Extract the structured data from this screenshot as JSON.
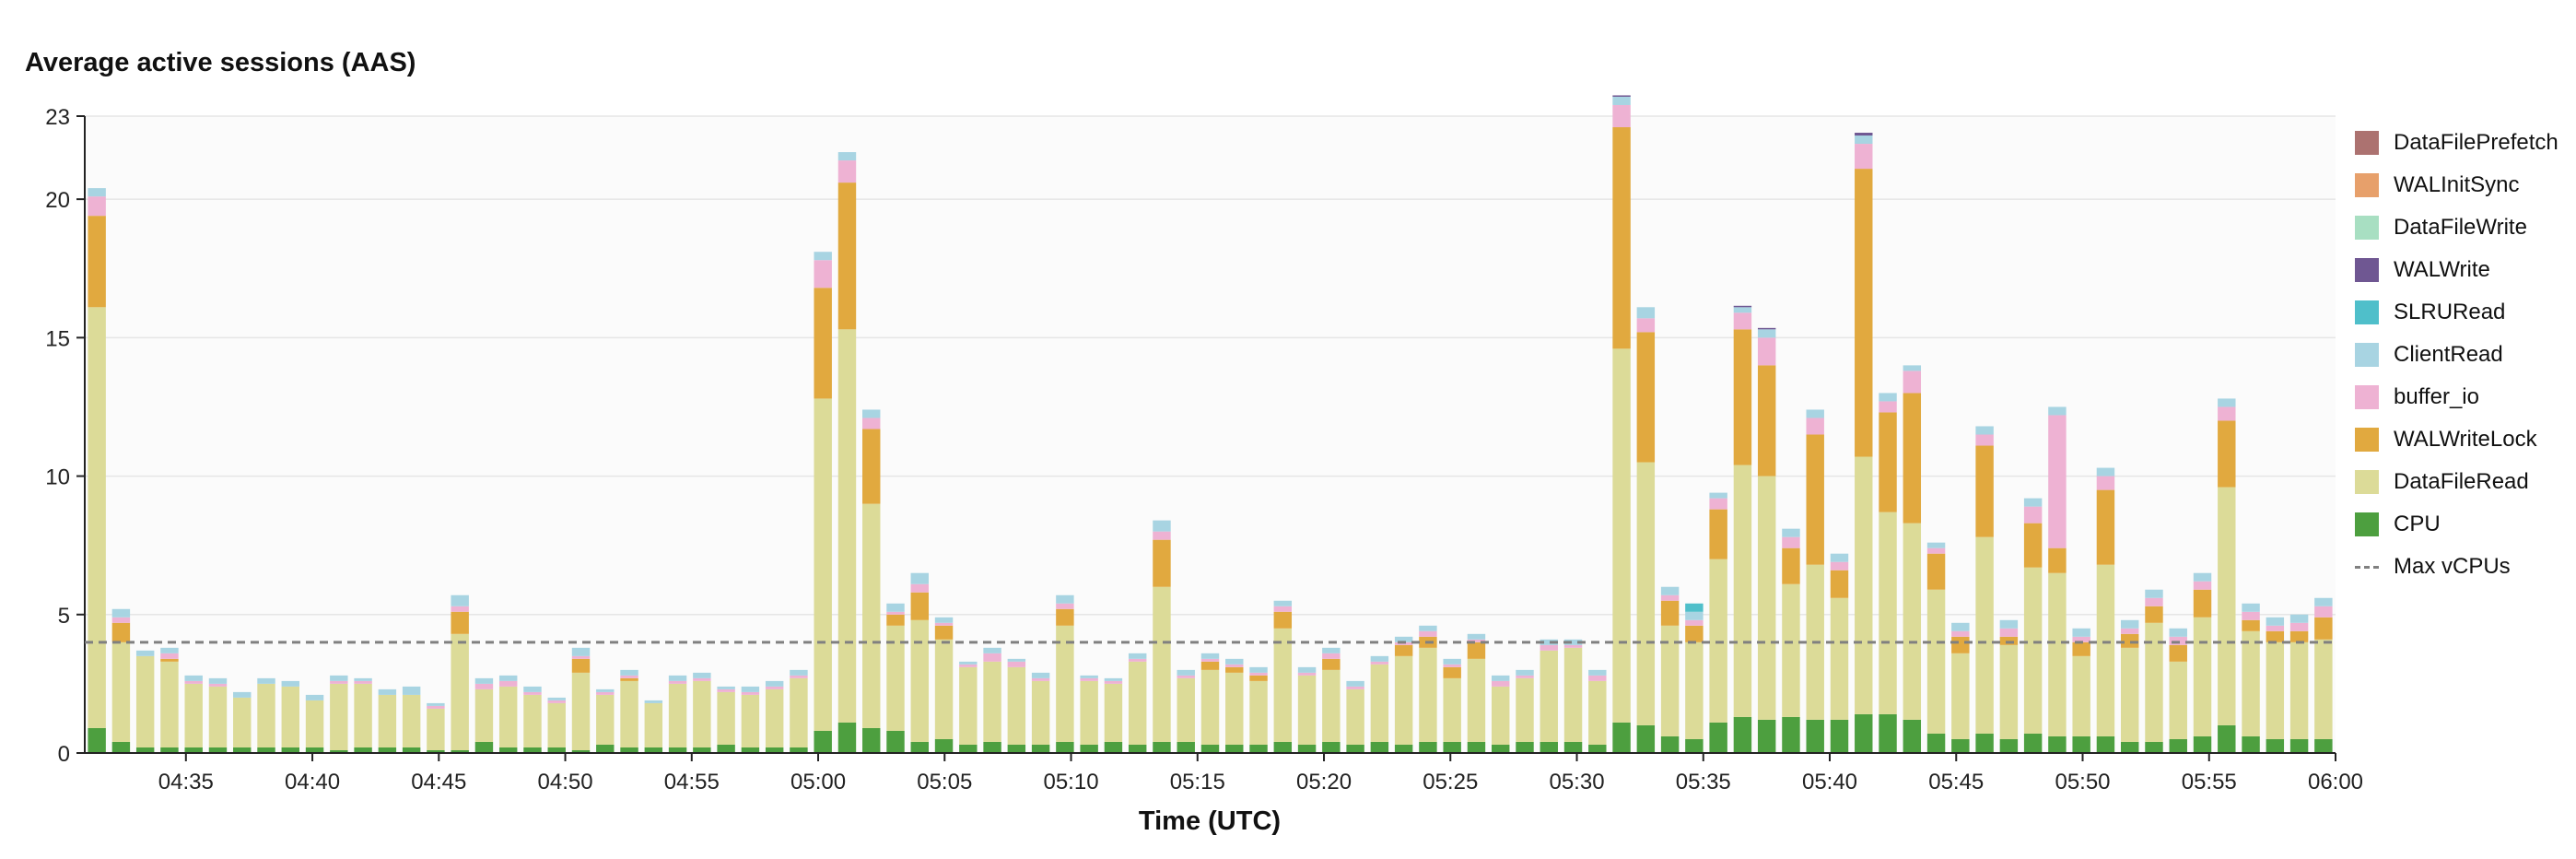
{
  "chart_data": {
    "type": "bar",
    "stacked": true,
    "title": "Average active sessions (AAS)",
    "xlabel": "Time (UTC)",
    "ylabel": "",
    "ylim": [
      0,
      23
    ],
    "yticks": [
      0,
      5,
      10,
      15,
      20,
      23
    ],
    "grid": true,
    "legend_position": "right",
    "x_tick_labels": [
      "04:35",
      "04:40",
      "04:45",
      "04:50",
      "04:55",
      "05:00",
      "05:05",
      "05:10",
      "05:15",
      "05:20",
      "05:25",
      "05:30",
      "05:35",
      "05:40",
      "05:45",
      "05:50",
      "05:55",
      "06:00"
    ],
    "x_start": "04:31",
    "x_end": "06:00",
    "reference_line": {
      "name": "Max vCPUs",
      "value": 4,
      "color": "#808080"
    },
    "series": [
      {
        "name": "CPU",
        "color": "#4d9f3f",
        "values": [
          0.9,
          0.4,
          0.2,
          0.2,
          0.2,
          0.2,
          0.2,
          0.2,
          0.2,
          0.2,
          0.1,
          0.2,
          0.2,
          0.2,
          0.1,
          0.1,
          0.4,
          0.2,
          0.2,
          0.2,
          0.1,
          0.3,
          0.2,
          0.2,
          0.2,
          0.2,
          0.3,
          0.2,
          0.2,
          0.2,
          0.8,
          1.1,
          0.9,
          0.8,
          0.4,
          0.5,
          0.3,
          0.4,
          0.3,
          0.3,
          0.4,
          0.3,
          0.4,
          0.3,
          0.4,
          0.4,
          0.3,
          0.3,
          0.3,
          0.4,
          0.3,
          0.4,
          0.3,
          0.4,
          0.3,
          0.4,
          0.4,
          0.4,
          0.3,
          0.4,
          0.4,
          0.4,
          0.3,
          1.1,
          1.0,
          0.6,
          0.5,
          1.1,
          1.3,
          1.2,
          1.3,
          1.2,
          1.2,
          1.4,
          1.4,
          1.2,
          0.7,
          0.5,
          0.7,
          0.5,
          0.7,
          0.6,
          0.6,
          0.6,
          0.4,
          0.4,
          0.5,
          0.6,
          1.0,
          0.6,
          0.5,
          0.5,
          0.5
        ]
      },
      {
        "name": "DataFileRead",
        "color": "#dcdb98",
        "values": [
          15.2,
          3.6,
          3.3,
          3.1,
          2.3,
          2.2,
          1.8,
          2.3,
          2.2,
          1.7,
          2.4,
          2.3,
          1.9,
          1.9,
          1.5,
          4.2,
          1.9,
          2.2,
          1.9,
          1.6,
          2.8,
          1.8,
          2.4,
          1.6,
          2.3,
          2.4,
          1.9,
          1.9,
          2.1,
          2.5,
          12.0,
          14.2,
          8.1,
          3.8,
          4.4,
          3.6,
          2.8,
          2.9,
          2.8,
          2.3,
          4.2,
          2.3,
          2.1,
          3.0,
          5.6,
          2.3,
          2.7,
          2.6,
          2.3,
          4.1,
          2.5,
          2.6,
          2.0,
          2.8,
          3.2,
          3.4,
          2.3,
          3.0,
          2.1,
          2.3,
          3.3,
          3.4,
          2.3,
          13.5,
          9.5,
          4.0,
          3.5,
          5.9,
          9.1,
          8.8,
          4.8,
          5.6,
          4.4,
          9.3,
          7.3,
          7.1,
          5.2,
          3.1,
          7.1,
          3.4,
          6.0,
          5.9,
          2.9,
          6.2,
          3.4,
          4.3,
          2.8,
          4.3,
          8.6,
          3.8,
          3.5,
          3.5,
          3.6
        ]
      },
      {
        "name": "WALWriteLock",
        "color": "#e1a93f",
        "values": [
          3.3,
          0.7,
          0.0,
          0.1,
          0.0,
          0.0,
          0.0,
          0.0,
          0.0,
          0.0,
          0.0,
          0.0,
          0.0,
          0.0,
          0.0,
          0.8,
          0.0,
          0.0,
          0.0,
          0.0,
          0.5,
          0.0,
          0.1,
          0.0,
          0.0,
          0.0,
          0.0,
          0.0,
          0.0,
          0.0,
          4.0,
          5.3,
          2.7,
          0.4,
          1.0,
          0.5,
          0.0,
          0.0,
          0.0,
          0.0,
          0.6,
          0.0,
          0.0,
          0.0,
          1.7,
          0.0,
          0.3,
          0.2,
          0.2,
          0.6,
          0.0,
          0.4,
          0.0,
          0.0,
          0.4,
          0.4,
          0.4,
          0.6,
          0.0,
          0.0,
          0.0,
          0.0,
          0.0,
          8.0,
          4.7,
          0.9,
          0.6,
          1.8,
          4.9,
          4.0,
          1.3,
          4.7,
          1.0,
          10.4,
          3.6,
          4.7,
          1.3,
          0.6,
          3.3,
          0.3,
          1.6,
          0.9,
          0.5,
          2.7,
          0.5,
          0.6,
          0.6,
          1.0,
          2.4,
          0.4,
          0.4,
          0.4,
          0.8
        ]
      },
      {
        "name": "buffer_io",
        "color": "#eeb2d3",
        "values": [
          0.7,
          0.2,
          0.0,
          0.2,
          0.1,
          0.1,
          0.0,
          0.0,
          0.0,
          0.0,
          0.1,
          0.1,
          0.0,
          0.0,
          0.1,
          0.2,
          0.2,
          0.2,
          0.1,
          0.1,
          0.1,
          0.1,
          0.1,
          0.0,
          0.1,
          0.1,
          0.1,
          0.1,
          0.1,
          0.1,
          1.0,
          0.8,
          0.4,
          0.1,
          0.3,
          0.1,
          0.1,
          0.3,
          0.2,
          0.1,
          0.2,
          0.1,
          0.1,
          0.1,
          0.3,
          0.1,
          0.1,
          0.1,
          0.1,
          0.2,
          0.1,
          0.2,
          0.1,
          0.1,
          0.1,
          0.2,
          0.1,
          0.1,
          0.2,
          0.1,
          0.2,
          0.1,
          0.2,
          0.8,
          0.5,
          0.2,
          0.2,
          0.4,
          0.6,
          1.0,
          0.4,
          0.6,
          0.3,
          0.9,
          0.4,
          0.8,
          0.2,
          0.2,
          0.4,
          0.3,
          0.6,
          4.8,
          0.2,
          0.5,
          0.2,
          0.3,
          0.3,
          0.3,
          0.5,
          0.3,
          0.2,
          0.3,
          0.4
        ]
      },
      {
        "name": "ClientRead",
        "color": "#a8d4e2",
        "values": [
          0.3,
          0.3,
          0.2,
          0.2,
          0.2,
          0.2,
          0.2,
          0.2,
          0.2,
          0.2,
          0.2,
          0.1,
          0.2,
          0.3,
          0.1,
          0.4,
          0.2,
          0.2,
          0.2,
          0.1,
          0.3,
          0.1,
          0.2,
          0.1,
          0.2,
          0.2,
          0.1,
          0.2,
          0.2,
          0.2,
          0.3,
          0.3,
          0.3,
          0.3,
          0.4,
          0.2,
          0.1,
          0.2,
          0.1,
          0.2,
          0.3,
          0.1,
          0.1,
          0.2,
          0.4,
          0.2,
          0.2,
          0.2,
          0.2,
          0.2,
          0.2,
          0.2,
          0.2,
          0.2,
          0.2,
          0.2,
          0.2,
          0.2,
          0.2,
          0.2,
          0.2,
          0.2,
          0.2,
          0.3,
          0.4,
          0.3,
          0.3,
          0.2,
          0.2,
          0.3,
          0.3,
          0.3,
          0.3,
          0.3,
          0.3,
          0.2,
          0.2,
          0.3,
          0.3,
          0.3,
          0.3,
          0.3,
          0.3,
          0.3,
          0.3,
          0.3,
          0.3,
          0.3,
          0.3,
          0.3,
          0.3,
          0.3,
          0.3
        ]
      },
      {
        "name": "SLRURead",
        "color": "#4fbfca",
        "values": [
          0,
          0,
          0,
          0,
          0,
          0,
          0,
          0,
          0,
          0,
          0,
          0,
          0,
          0,
          0,
          0,
          0,
          0,
          0,
          0,
          0,
          0,
          0,
          0,
          0,
          0,
          0,
          0,
          0,
          0,
          0,
          0,
          0,
          0,
          0,
          0,
          0,
          0,
          0,
          0,
          0,
          0,
          0,
          0,
          0,
          0,
          0,
          0,
          0,
          0,
          0,
          0,
          0,
          0,
          0,
          0,
          0,
          0,
          0,
          0,
          0,
          0,
          0,
          0,
          0,
          0,
          0.3,
          0,
          0,
          0,
          0,
          0,
          0,
          0,
          0,
          0,
          0,
          0,
          0,
          0,
          0,
          0,
          0,
          0,
          0,
          0,
          0,
          0,
          0,
          0,
          0,
          0,
          0
        ]
      },
      {
        "name": "WALWrite",
        "color": "#6f5792",
        "values": [
          0,
          0,
          0,
          0,
          0,
          0,
          0,
          0,
          0,
          0,
          0,
          0,
          0,
          0,
          0,
          0,
          0,
          0,
          0,
          0,
          0,
          0,
          0,
          0,
          0,
          0,
          0,
          0,
          0,
          0,
          0,
          0,
          0,
          0,
          0,
          0,
          0,
          0,
          0,
          0,
          0,
          0,
          0,
          0,
          0,
          0,
          0,
          0,
          0,
          0,
          0,
          0,
          0,
          0,
          0,
          0,
          0,
          0,
          0,
          0,
          0,
          0,
          0,
          0.05,
          0,
          0,
          0,
          0,
          0.05,
          0.05,
          0,
          0,
          0,
          0.1,
          0,
          0,
          0,
          0,
          0,
          0,
          0,
          0,
          0,
          0,
          0,
          0,
          0,
          0,
          0,
          0,
          0,
          0,
          0
        ]
      },
      {
        "name": "DataFileWrite",
        "color": "#a8dfc2",
        "values": [
          0,
          0,
          0,
          0,
          0,
          0,
          0,
          0,
          0,
          0,
          0,
          0,
          0,
          0,
          0,
          0,
          0,
          0,
          0,
          0,
          0,
          0,
          0,
          0,
          0,
          0,
          0,
          0,
          0,
          0,
          0,
          0,
          0,
          0,
          0,
          0,
          0,
          0,
          0,
          0,
          0,
          0,
          0,
          0,
          0,
          0,
          0,
          0,
          0,
          0,
          0,
          0,
          0,
          0,
          0,
          0,
          0,
          0,
          0,
          0,
          0,
          0,
          0,
          0,
          0,
          0,
          0,
          0,
          0,
          0,
          0,
          0,
          0,
          0,
          0,
          0,
          0,
          0,
          0,
          0,
          0,
          0,
          0,
          0,
          0,
          0,
          0,
          0,
          0,
          0,
          0,
          0,
          0
        ]
      },
      {
        "name": "WALInitSync",
        "color": "#e7a06b",
        "values": [
          0,
          0,
          0,
          0,
          0,
          0,
          0,
          0,
          0,
          0,
          0,
          0,
          0,
          0,
          0,
          0,
          0,
          0,
          0,
          0,
          0,
          0,
          0,
          0,
          0,
          0,
          0,
          0,
          0,
          0,
          0,
          0,
          0,
          0,
          0,
          0,
          0,
          0,
          0,
          0,
          0,
          0,
          0,
          0,
          0,
          0,
          0,
          0,
          0,
          0,
          0,
          0,
          0,
          0,
          0,
          0,
          0,
          0,
          0,
          0,
          0,
          0,
          0,
          0,
          0,
          0,
          0,
          0,
          0,
          0,
          0,
          0,
          0,
          0,
          0,
          0,
          0,
          0,
          0,
          0,
          0,
          0,
          0,
          0,
          0,
          0,
          0,
          0,
          0,
          0,
          0,
          0,
          0
        ]
      },
      {
        "name": "DataFilePrefetch",
        "color": "#ac7270",
        "values": [
          0,
          0,
          0,
          0,
          0,
          0,
          0,
          0,
          0,
          0,
          0,
          0,
          0,
          0,
          0,
          0,
          0,
          0,
          0,
          0,
          0,
          0,
          0,
          0,
          0,
          0,
          0,
          0,
          0,
          0,
          0,
          0,
          0,
          0,
          0,
          0,
          0,
          0,
          0,
          0,
          0,
          0,
          0,
          0,
          0,
          0,
          0,
          0,
          0,
          0,
          0,
          0,
          0,
          0,
          0,
          0,
          0,
          0,
          0,
          0,
          0,
          0,
          0,
          0,
          0,
          0,
          0,
          0,
          0,
          0,
          0,
          0,
          0,
          0,
          0,
          0,
          0,
          0,
          0,
          0,
          0,
          0,
          0,
          0,
          0,
          0,
          0,
          0,
          0,
          0,
          0,
          0,
          0
        ]
      }
    ],
    "legend": [
      "DataFilePrefetch",
      "WALInitSync",
      "DataFileWrite",
      "WALWrite",
      "SLRURead",
      "ClientRead",
      "buffer_io",
      "WALWriteLock",
      "DataFileRead",
      "CPU",
      "Max vCPUs"
    ]
  }
}
